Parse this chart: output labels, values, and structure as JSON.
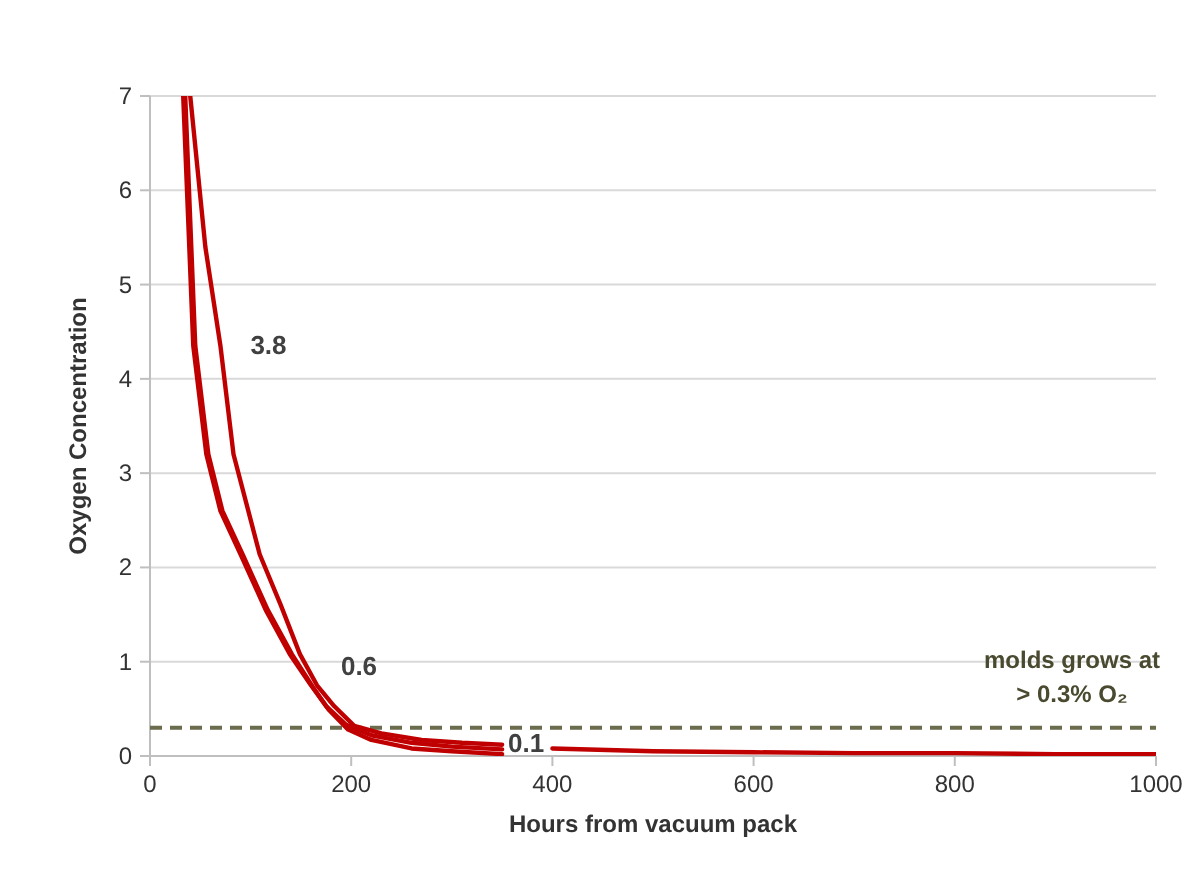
{
  "chart_data": {
    "type": "line",
    "xlabel": "Hours from vacuum pack",
    "ylabel": "Oxygen Concentration",
    "xlim": [
      0,
      1000
    ],
    "xticks": [
      0,
      200,
      400,
      600,
      800,
      1000
    ],
    "ylim": [
      0,
      7
    ],
    "yticks": [
      0,
      1,
      2,
      3,
      4,
      5,
      6,
      7
    ],
    "grid": "y",
    "marker": "none",
    "line_style": "solid",
    "series": [
      {
        "color": "#c00000",
        "x": [
          40,
          55,
          70,
          83,
          109,
          130,
          149,
          166,
          183,
          203,
          230,
          270,
          310,
          350,
          375,
          400,
          500,
          600,
          700,
          800,
          900,
          1000
        ],
        "values": [
          7,
          5.4,
          4.35,
          3.2,
          2.14,
          1.6,
          1.08,
          0.75,
          0.53,
          0.32,
          0.24,
          0.17,
          0.14,
          0.12,
          null,
          0.08,
          0.05,
          0.04,
          0.03,
          0.03,
          0.02,
          0.02
        ]
      },
      {
        "color": "#c00000",
        "x": [
          33,
          43,
          56,
          70,
          90,
          115,
          139,
          160,
          175,
          195,
          220,
          260,
          300,
          350
        ],
        "values": [
          7,
          4.35,
          3.2,
          2.6,
          2.14,
          1.55,
          1.08,
          0.75,
          0.53,
          0.33,
          0.22,
          0.14,
          0.1,
          0.07
        ]
      },
      {
        "color": "#c00000",
        "x": [
          35,
          45,
          58,
          72,
          92,
          117,
          141,
          162,
          177,
          197,
          220,
          260,
          300,
          350
        ],
        "values": [
          7,
          4.35,
          3.2,
          2.6,
          2.14,
          1.55,
          1.08,
          0.73,
          0.5,
          0.28,
          0.17,
          0.08,
          0.05,
          0.02
        ]
      }
    ],
    "ref_lines": [
      {
        "axis": "y",
        "value": 0.3,
        "label": "molds grows at\n> 0.3% O₂",
        "color": "#6b6b4e",
        "line_style": "dashed"
      }
    ],
    "annotations": [
      {
        "text": "3.8",
        "x": 70,
        "y": 4.35
      },
      {
        "text": "0.6",
        "x": 160,
        "y": 0.75
      },
      {
        "text": "0.1",
        "x": 350,
        "y": 0.02
      }
    ]
  }
}
